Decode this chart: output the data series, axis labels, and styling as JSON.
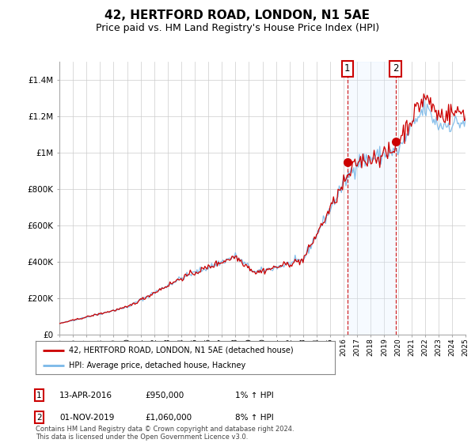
{
  "title": "42, HERTFORD ROAD, LONDON, N1 5AE",
  "subtitle": "Price paid vs. HM Land Registry's House Price Index (HPI)",
  "title_fontsize": 11,
  "subtitle_fontsize": 9,
  "ylim": [
    0,
    1500000
  ],
  "yticks": [
    0,
    200000,
    400000,
    600000,
    800000,
    1000000,
    1200000,
    1400000
  ],
  "ytick_labels": [
    "£0",
    "£200K",
    "£400K",
    "£600K",
    "£800K",
    "£1M",
    "£1.2M",
    "£1.4M"
  ],
  "hpi_color": "#7ab8e8",
  "price_color": "#cc0000",
  "shade_color": "#ddeeff",
  "annotation_box_color": "#cc0000",
  "grid_color": "#cccccc",
  "background_color": "#ffffff",
  "legend_label_price": "42, HERTFORD ROAD, LONDON, N1 5AE (detached house)",
  "legend_label_hpi": "HPI: Average price, detached house, Hackney",
  "transaction_1_date": "13-APR-2016",
  "transaction_1_price": "£950,000",
  "transaction_1_note": "1% ↑ HPI",
  "transaction_1_year": 2016.28,
  "transaction_1_value": 950000,
  "transaction_2_date": "01-NOV-2019",
  "transaction_2_price": "£1,060,000",
  "transaction_2_note": "8% ↑ HPI",
  "transaction_2_year": 2019.83,
  "transaction_2_value": 1060000,
  "footer": "Contains HM Land Registry data © Crown copyright and database right 2024.\nThis data is licensed under the Open Government Licence v3.0.",
  "xlim_start": 1995,
  "xlim_end": 2025,
  "noise_seed": 42
}
